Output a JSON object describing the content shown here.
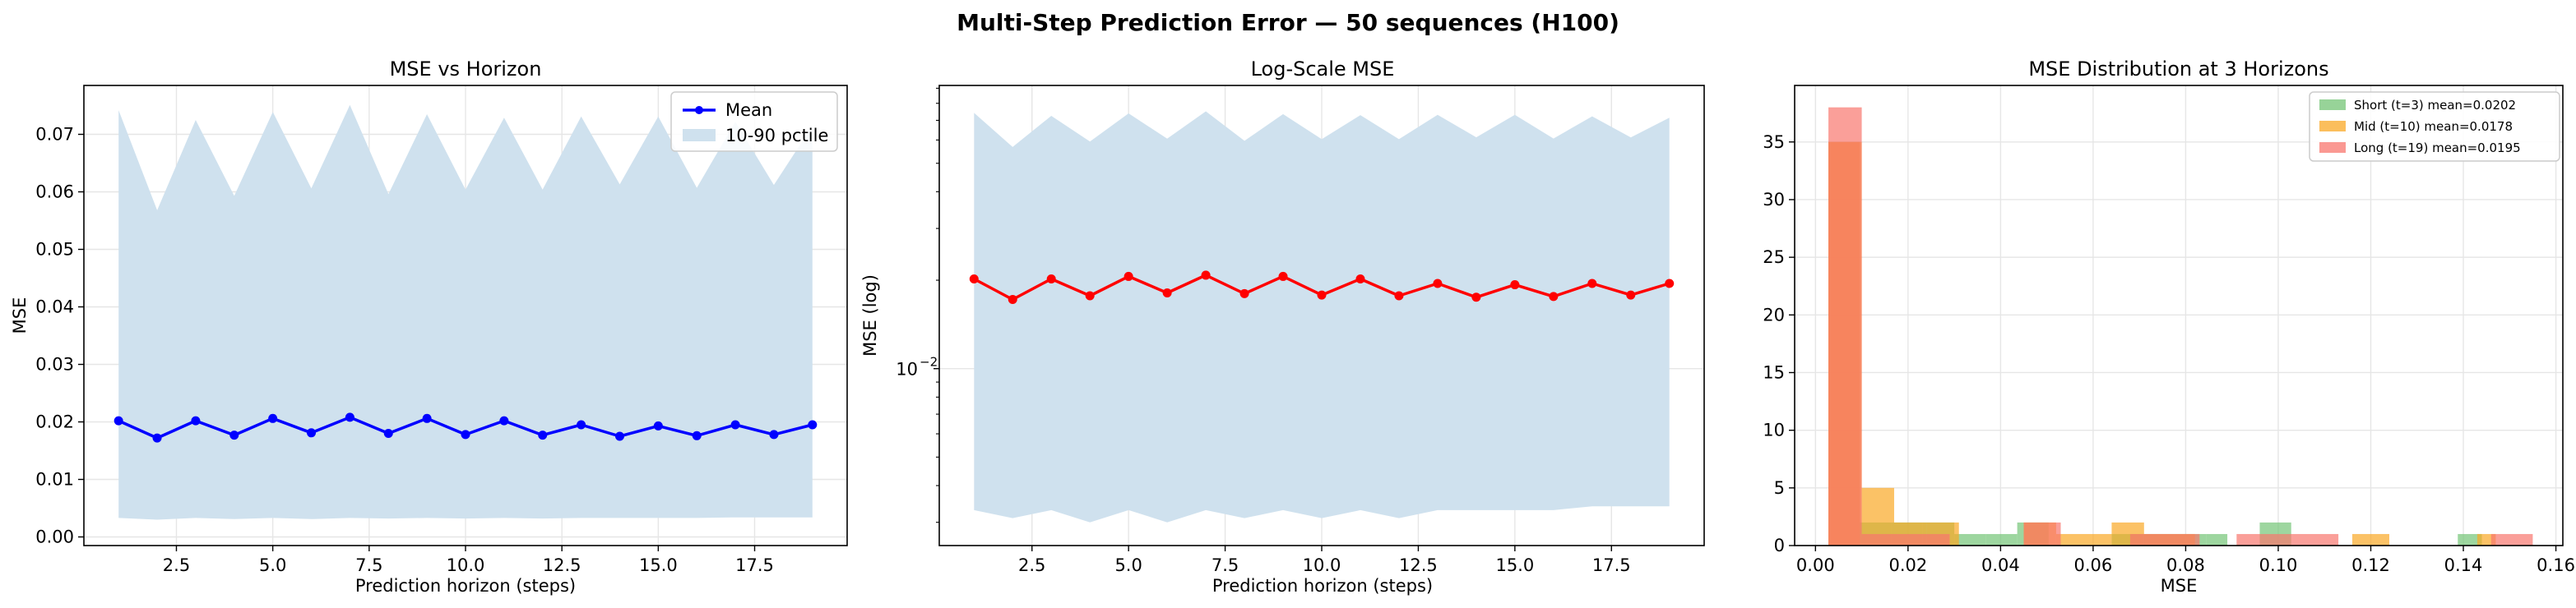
{
  "figure": {
    "suptitle": "Multi-Step Prediction Error — 50 sequences (H100)"
  },
  "colors": {
    "mean_line": "#0000ff",
    "log_line": "#ff0000",
    "band": "#cfe1ee",
    "short": "#74c476",
    "mid": "#f9a825",
    "long": "#f8766d",
    "overlap": "#e86c34"
  },
  "chart_data": [
    {
      "type": "line",
      "title": "MSE vs Horizon",
      "xlabel": "Prediction horizon (steps)",
      "ylabel": "MSE",
      "xlim": [
        0.1,
        19.9
      ],
      "ylim": [
        -0.0015,
        0.0785
      ],
      "xticks": [
        2.5,
        5.0,
        7.5,
        10.0,
        12.5,
        15.0,
        17.5
      ],
      "xtick_labels": [
        "2.5",
        "5.0",
        "7.5",
        "10.0",
        "12.5",
        "15.0",
        "17.5"
      ],
      "yticks": [
        0.0,
        0.01,
        0.02,
        0.03,
        0.04,
        0.05,
        0.06,
        0.07
      ],
      "ytick_labels": [
        "0.00",
        "0.01",
        "0.02",
        "0.03",
        "0.04",
        "0.05",
        "0.06",
        "0.07"
      ],
      "grid": true,
      "legend_position": "top-right",
      "x": [
        1,
        2,
        3,
        4,
        5,
        6,
        7,
        8,
        9,
        10,
        11,
        12,
        13,
        14,
        15,
        16,
        17,
        18,
        19
      ],
      "series": [
        {
          "name": "Mean",
          "values": [
            0.0202,
            0.0172,
            0.0202,
            0.0177,
            0.0206,
            0.0181,
            0.0208,
            0.018,
            0.0206,
            0.0178,
            0.0202,
            0.0177,
            0.0195,
            0.0175,
            0.0193,
            0.0176,
            0.0195,
            0.0178,
            0.0195
          ]
        }
      ],
      "band": {
        "name": "10-90 pctile",
        "lower": [
          0.0033,
          0.003,
          0.0033,
          0.0031,
          0.0033,
          0.0031,
          0.0033,
          0.0032,
          0.0033,
          0.0032,
          0.0033,
          0.0032,
          0.0033,
          0.0033,
          0.0033,
          0.0033,
          0.0034,
          0.0034,
          0.0034
        ],
        "upper": [
          0.0742,
          0.0568,
          0.0725,
          0.0593,
          0.0739,
          0.0606,
          0.0751,
          0.0596,
          0.0735,
          0.0604,
          0.0729,
          0.0604,
          0.0731,
          0.0613,
          0.0731,
          0.0607,
          0.0722,
          0.0612,
          0.0715
        ]
      }
    },
    {
      "type": "line",
      "title": "Log-Scale MSE",
      "xlabel": "Prediction horizon (steps)",
      "ylabel": "MSE (log)",
      "yscale": "log",
      "xlim": [
        0.1,
        19.9
      ],
      "ylim": [
        0.0025,
        0.092
      ],
      "xticks": [
        2.5,
        5.0,
        7.5,
        10.0,
        12.5,
        15.0,
        17.5
      ],
      "xtick_labels": [
        "2.5",
        "5.0",
        "7.5",
        "10.0",
        "12.5",
        "15.0",
        "17.5"
      ],
      "yticks": [
        0.01
      ],
      "ytick_labels": [
        "10",
        "−2"
      ],
      "grid": true,
      "x": [
        1,
        2,
        3,
        4,
        5,
        6,
        7,
        8,
        9,
        10,
        11,
        12,
        13,
        14,
        15,
        16,
        17,
        18,
        19
      ],
      "series": [
        {
          "values": [
            0.0202,
            0.0172,
            0.0202,
            0.0177,
            0.0206,
            0.0181,
            0.0208,
            0.018,
            0.0206,
            0.0178,
            0.0202,
            0.0177,
            0.0195,
            0.0175,
            0.0193,
            0.0176,
            0.0195,
            0.0178,
            0.0195
          ]
        }
      ],
      "band": {
        "lower": [
          0.0033,
          0.0031,
          0.0033,
          0.003,
          0.0033,
          0.003,
          0.0033,
          0.0031,
          0.0033,
          0.0031,
          0.0033,
          0.0031,
          0.0033,
          0.0033,
          0.0033,
          0.0033,
          0.0034,
          0.0034,
          0.0034
        ],
        "upper": [
          0.0742,
          0.0568,
          0.0725,
          0.0593,
          0.0739,
          0.0606,
          0.0751,
          0.0596,
          0.0735,
          0.0604,
          0.0729,
          0.0604,
          0.0731,
          0.0613,
          0.0731,
          0.0607,
          0.0722,
          0.0612,
          0.0715
        ]
      }
    },
    {
      "type": "bar",
      "subtype": "histogram",
      "title": "MSE Distribution at 3 Horizons",
      "xlabel": "MSE",
      "ylabel": "",
      "xlim": [
        -0.0045,
        0.1615
      ],
      "ylim": [
        0,
        39.9
      ],
      "xticks": [
        0.0,
        0.02,
        0.04,
        0.06,
        0.08,
        0.1,
        0.12,
        0.14,
        0.16
      ],
      "xtick_labels": [
        "0.00",
        "0.02",
        "0.04",
        "0.06",
        "0.08",
        "0.10",
        "0.12",
        "0.14",
        "0.16"
      ],
      "yticks": [
        0,
        5,
        10,
        15,
        20,
        25,
        30,
        35
      ],
      "ytick_labels": [
        "0",
        "5",
        "10",
        "15",
        "20",
        "25",
        "30",
        "35"
      ],
      "grid": true,
      "legend_position": "top-right",
      "series": [
        {
          "name": "Short (t=3) mean=0.0202",
          "bins": [
            [
              0.0028,
              0.0096,
              35
            ],
            [
              0.0096,
              0.0164,
              2
            ],
            [
              0.0164,
              0.0232,
              2
            ],
            [
              0.0232,
              0.03,
              2
            ],
            [
              0.03,
              0.0368,
              1
            ],
            [
              0.0368,
              0.0436,
              1
            ],
            [
              0.0436,
              0.0504,
              2
            ],
            [
              0.064,
              0.0708,
              1
            ],
            [
              0.0708,
              0.0776,
              1
            ],
            [
              0.0776,
              0.0844,
              1
            ],
            [
              0.0844,
              0.089,
              1
            ],
            [
              0.096,
              0.1028,
              2
            ],
            [
              0.1388,
              0.144,
              1
            ]
          ]
        },
        {
          "name": "Mid (t=10) mean=0.0178",
          "bins": [
            [
              0.0028,
              0.01,
              35
            ],
            [
              0.01,
              0.017,
              5
            ],
            [
              0.017,
              0.024,
              2
            ],
            [
              0.024,
              0.031,
              2
            ],
            [
              0.045,
              0.052,
              2
            ],
            [
              0.052,
              0.064,
              1
            ],
            [
              0.064,
              0.071,
              2
            ],
            [
              0.071,
              0.082,
              1
            ],
            [
              0.116,
              0.124,
              1
            ],
            [
              0.143,
              0.147,
              1
            ]
          ]
        },
        {
          "name": "Long (t=19) mean=0.0195",
          "bins": [
            [
              0.0028,
              0.01,
              38
            ],
            [
              0.01,
              0.029,
              1
            ],
            [
              0.045,
              0.053,
              2
            ],
            [
              0.068,
              0.083,
              1
            ],
            [
              0.091,
              0.113,
              1
            ],
            [
              0.146,
              0.155,
              1
            ]
          ]
        }
      ]
    }
  ]
}
